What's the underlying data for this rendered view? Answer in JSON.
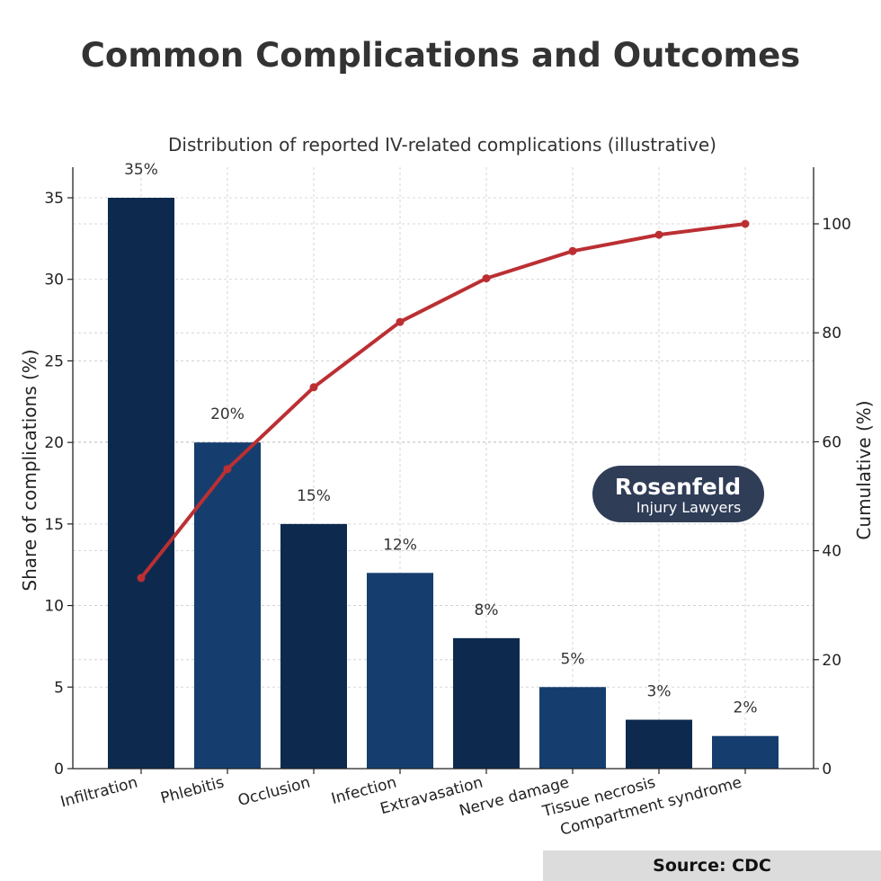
{
  "title": "Common Complications and Outcomes",
  "logo": {
    "name": "Rosenfeld",
    "tagline": "Injury Lawyers"
  },
  "source": "Source: CDC",
  "colors": {
    "bar_dark": "#0d2a4e",
    "bar_light": "#153e6e",
    "cumulative_line": "#bb2f33",
    "logo_bg": "#2f3d57",
    "grid": "#cccccc"
  },
  "chart_data": {
    "type": "bar",
    "title": "Distribution of reported IV-related complications (illustrative)",
    "xlabel": "",
    "ylabel": "Share of complications (%)",
    "y2label": "Cumulative (%)",
    "categories": [
      "Infiltration",
      "Phlebitis",
      "Occlusion",
      "Infection",
      "Extravasation",
      "Nerve damage",
      "Tissue necrosis",
      "Compartment syndrome"
    ],
    "values": [
      35,
      20,
      15,
      12,
      8,
      5,
      3,
      2
    ],
    "data_labels": [
      "35%",
      "20%",
      "15%",
      "12%",
      "8%",
      "5%",
      "3%",
      "2%"
    ],
    "cumulative": [
      35,
      55,
      70,
      82,
      90,
      95,
      98,
      100
    ],
    "ylim": [
      0,
      35
    ],
    "y2lim": [
      0,
      100
    ],
    "yticks": [
      0,
      5,
      10,
      15,
      20,
      25,
      30,
      35
    ],
    "y2ticks": [
      0,
      20,
      40,
      60,
      80,
      100
    ],
    "grid": true,
    "cumulative_line": true
  }
}
